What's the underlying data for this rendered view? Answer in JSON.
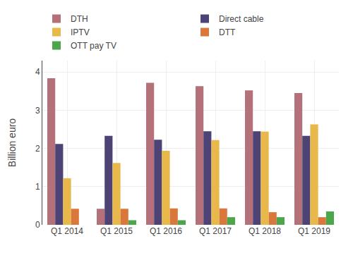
{
  "chart_data": {
    "type": "bar",
    "categories": [
      "Q1 2014",
      "Q1 2015",
      "Q1 2016",
      "Q1 2017",
      "Q1 2018",
      "Q1 2019"
    ],
    "series": [
      {
        "name": "DTH",
        "color": "#b5717a",
        "values": [
          3.84,
          0.42,
          3.72,
          3.63,
          3.52,
          3.45
        ]
      },
      {
        "name": "Direct cable",
        "color": "#4d4475",
        "values": [
          2.12,
          2.33,
          2.23,
          2.45,
          2.45,
          2.33
        ]
      },
      {
        "name": "IPTV",
        "color": "#e8b84b",
        "values": [
          1.22,
          1.62,
          1.94,
          2.22,
          2.44,
          2.63
        ]
      },
      {
        "name": "DTT",
        "color": "#d9783a",
        "values": [
          0.42,
          0.42,
          0.43,
          0.43,
          0.33,
          0.2
        ]
      },
      {
        "name": "OTT pay TV",
        "color": "#4ca64c",
        "values": [
          0.0,
          0.12,
          0.12,
          0.2,
          0.2,
          0.35
        ]
      }
    ],
    "ylabel": "Billion euro",
    "ylim": [
      0,
      4.3
    ],
    "yticks": [
      0,
      1,
      2,
      3,
      4
    ],
    "grid": true,
    "legend": "top"
  }
}
